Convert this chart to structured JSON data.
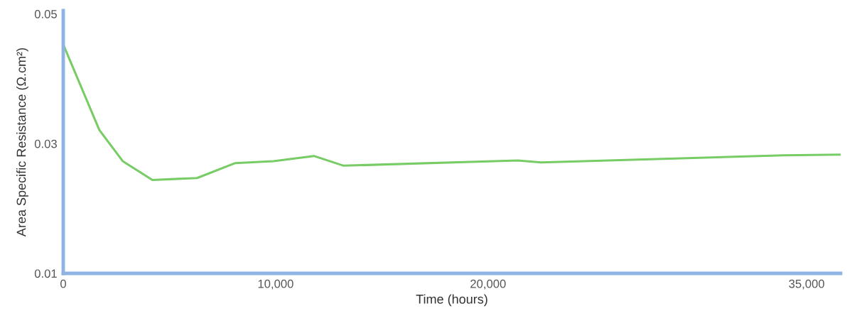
{
  "chart_data": {
    "type": "line",
    "xlabel": "Time (hours)",
    "ylabel": "Area Specific Resistance (Ω.cm²)",
    "x": [
      0,
      1700,
      2800,
      4200,
      6300,
      8100,
      9900,
      11800,
      13200,
      21400,
      22500,
      33900,
      36600
    ],
    "series": [
      {
        "color": "#77cc66",
        "values": [
          0.0453,
          0.0321,
          0.0273,
          0.0244,
          0.0247,
          0.027,
          0.0273,
          0.0281,
          0.0266,
          0.0274,
          0.0271,
          0.0282,
          0.0283
        ]
      }
    ],
    "xlim": [
      0,
      36600
    ],
    "ylim": [
      0.01,
      0.0505
    ],
    "xticks": [
      0,
      {
        "value": 10000,
        "label": "10,000"
      },
      {
        "value": 20000,
        "label": "20,000"
      },
      {
        "value": 35000,
        "label": "35,000"
      }
    ],
    "yticks": [
      0.05,
      0.03,
      0.01
    ],
    "grid": false,
    "legend": false,
    "marker": "none",
    "line_style": "solid"
  }
}
